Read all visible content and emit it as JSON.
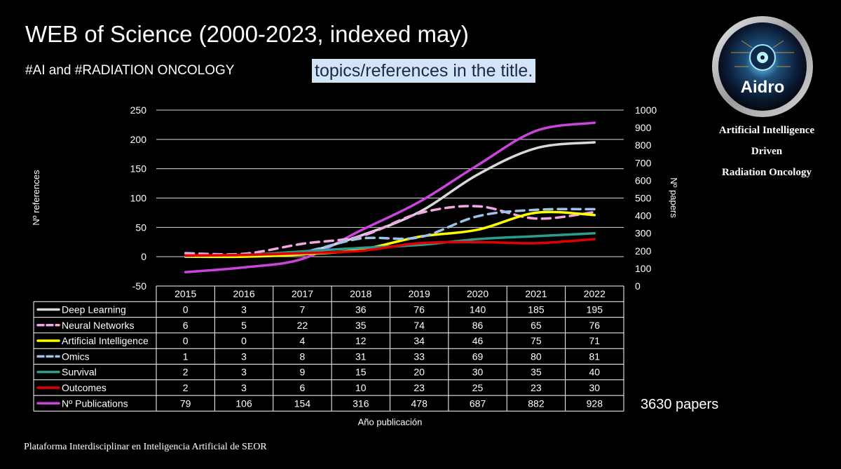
{
  "header": {
    "title": "WEB of Science (2000-2023, indexed may)",
    "subtitle": "#AI and #RADIATION ONCOLOGY",
    "highlight": "topics/references in the title."
  },
  "brand": {
    "logo_text": "Aidro",
    "line1": "Artificial Intelligence",
    "line2": "Driven",
    "line3": "Radiation Oncology"
  },
  "footer": {
    "text": "Plataforma Interdisciplinar en Inteligencia Artificial de SEOR",
    "total_papers": "3630 papers"
  },
  "chart_data": {
    "type": "line",
    "xlabel": "Año publicación",
    "ylabel": "Nº references",
    "y2label": "Nº papers",
    "ylim": [
      -50,
      250
    ],
    "y2lim": [
      0,
      1000
    ],
    "yticks": [
      250,
      200,
      150,
      100,
      50,
      0,
      -50
    ],
    "y2ticks": [
      1000,
      900,
      800,
      700,
      600,
      500,
      400,
      300,
      200,
      100,
      0
    ],
    "categories": [
      "2015",
      "2016",
      "2017",
      "2018",
      "2019",
      "2020",
      "2021",
      "2022"
    ],
    "series": [
      {
        "name": "Deep Learning",
        "axis": "left",
        "color": "#d9d9d9",
        "dash": "solid",
        "values": [
          0,
          3,
          7,
          36,
          76,
          140,
          185,
          195
        ]
      },
      {
        "name": "Neural Networks",
        "axis": "left",
        "color": "#f2a6e6",
        "dash": "dashed",
        "values": [
          6,
          5,
          22,
          35,
          74,
          86,
          65,
          76
        ]
      },
      {
        "name": "Artificial Intelligence",
        "axis": "left",
        "color": "#ffff00",
        "dash": "solid",
        "values": [
          0,
          0,
          4,
          12,
          34,
          46,
          75,
          71
        ]
      },
      {
        "name": "Omics",
        "axis": "left",
        "color": "#9dc3e6",
        "dash": "dashed",
        "values": [
          1,
          3,
          8,
          31,
          33,
          69,
          80,
          81
        ]
      },
      {
        "name": "Survival",
        "axis": "left",
        "color": "#2a9d8f",
        "dash": "solid",
        "values": [
          2,
          3,
          9,
          15,
          20,
          30,
          35,
          40
        ]
      },
      {
        "name": "Outcomes",
        "axis": "left",
        "color": "#e00000",
        "dash": "solid",
        "values": [
          2,
          3,
          6,
          10,
          23,
          25,
          23,
          30
        ]
      },
      {
        "name": "Nº Publications",
        "axis": "right",
        "color": "#cc44dd",
        "dash": "solid",
        "values": [
          79,
          106,
          154,
          316,
          478,
          687,
          882,
          928
        ]
      }
    ]
  }
}
